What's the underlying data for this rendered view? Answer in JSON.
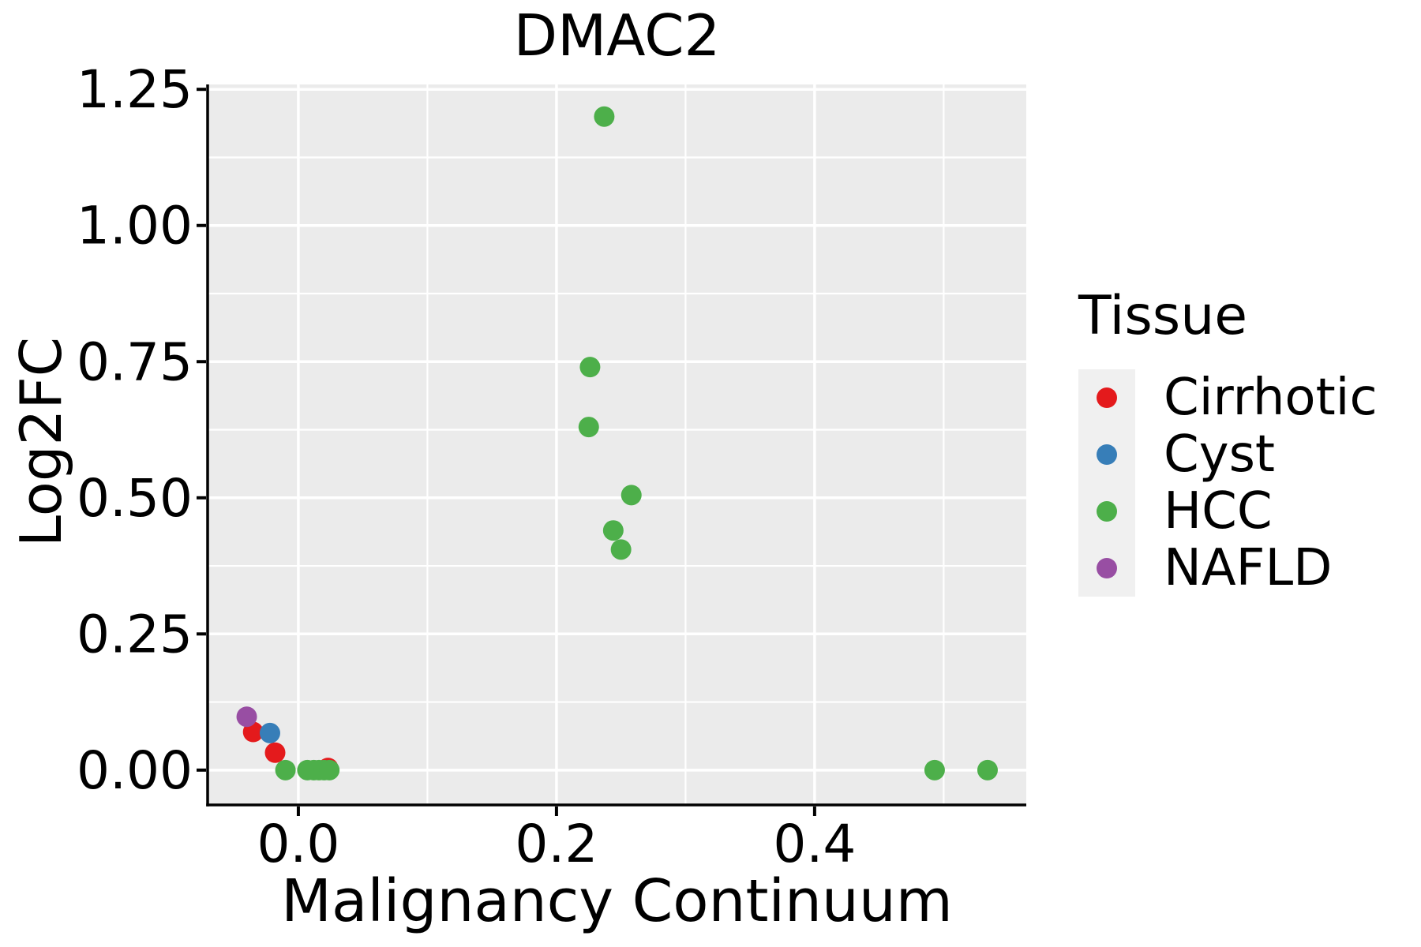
{
  "chart_data": {
    "type": "scatter",
    "title": "DMAC2",
    "xlabel": "Malignancy Continuum",
    "ylabel": "Log2FC",
    "xlim": [
      -0.0703,
      0.564
    ],
    "ylim": [
      -0.064,
      1.259
    ],
    "x_ticks": {
      "values": [
        0.0,
        0.2,
        0.4
      ],
      "labels": [
        "0.0",
        "0.2",
        "0.4"
      ]
    },
    "y_ticks": {
      "values": [
        0.0,
        0.25,
        0.5,
        0.75,
        1.0,
        1.25
      ],
      "labels": [
        "0.00",
        "0.25",
        "0.50",
        "0.75",
        "1.00",
        "1.25"
      ]
    },
    "x_minor": [
      0.1,
      0.3,
      0.5
    ],
    "y_minor": [
      0.125,
      0.375,
      0.625,
      0.875,
      1.125
    ],
    "grid": true,
    "panel_bg": "#EBEBEB",
    "grid_color": "#FFFFFF",
    "axis_color": "#000000",
    "point_radius_px": 13,
    "legend": {
      "title": "Tissue",
      "position": "right",
      "key_bg": "#F0F0F0"
    },
    "series": [
      {
        "name": "Cirrhotic",
        "color": "#E41A1C",
        "points": [
          [
            -0.035,
            0.07
          ],
          [
            -0.018,
            0.032
          ],
          [
            0.023,
            0.004
          ]
        ]
      },
      {
        "name": "Cyst",
        "color": "#377EB8",
        "points": [
          [
            -0.022,
            0.068
          ]
        ]
      },
      {
        "name": "HCC",
        "color": "#4DAF4A",
        "points": [
          [
            0.237,
            1.2
          ],
          [
            0.226,
            0.74
          ],
          [
            0.225,
            0.63
          ],
          [
            0.258,
            0.505
          ],
          [
            0.244,
            0.44
          ],
          [
            0.25,
            0.405
          ],
          [
            -0.01,
            0.0
          ],
          [
            0.007,
            0.0
          ],
          [
            0.012,
            0.0
          ],
          [
            0.016,
            0.0
          ],
          [
            0.02,
            0.0
          ],
          [
            0.024,
            0.0
          ],
          [
            0.493,
            0.0
          ],
          [
            0.534,
            0.0
          ]
        ]
      },
      {
        "name": "NAFLD",
        "color": "#984EA3",
        "points": [
          [
            -0.04,
            0.098
          ]
        ]
      }
    ]
  }
}
